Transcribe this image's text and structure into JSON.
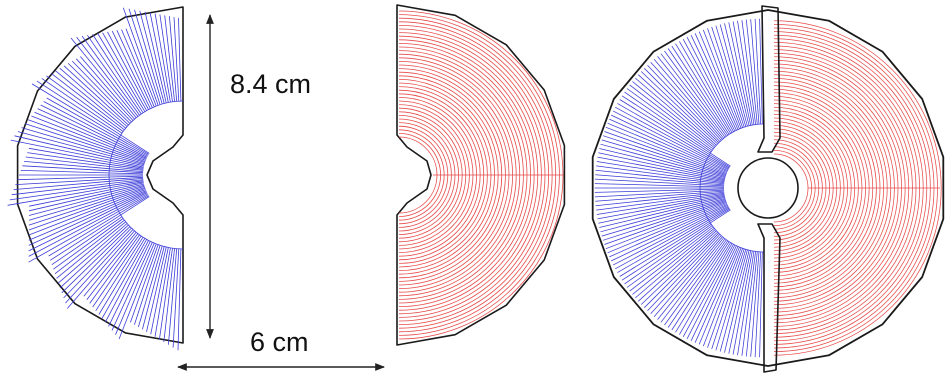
{
  "figure": {
    "dimension_vertical": "8.4 cm",
    "dimension_horizontal": "6 cm"
  },
  "colors": {
    "left_pattern": "#3b3bd9",
    "right_pattern": "#e84a4a",
    "outline": "#1a1a1a",
    "dimension": "#222222"
  },
  "panels": [
    {
      "name": "left-half",
      "pattern": "radial-lines"
    },
    {
      "name": "right-half",
      "pattern": "concentric-arcs"
    },
    {
      "name": "assembled-disk",
      "pattern": "radial-lines-and-concentric-arcs"
    }
  ]
}
